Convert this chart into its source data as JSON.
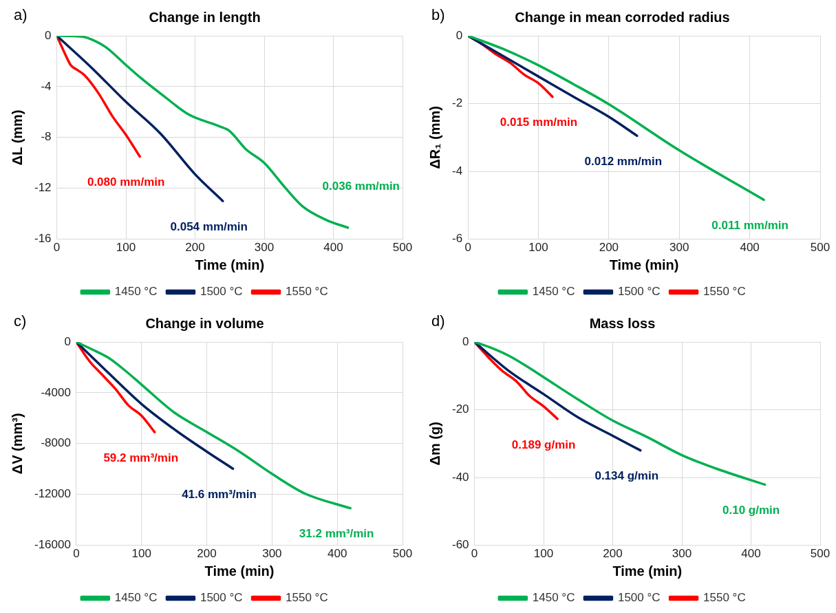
{
  "chart_data": [
    {
      "type": "line",
      "title": "Change in length",
      "xlabel": "Time (min)",
      "ylabel": "ΔL (mm)",
      "xlim": [
        0,
        500
      ],
      "xticks": [
        0,
        100,
        200,
        300,
        400,
        500
      ],
      "ylim": [
        -16,
        0
      ],
      "yticks": [
        -16,
        -12,
        -8,
        -4,
        0
      ],
      "grid": true,
      "legend": "bottom",
      "marker": "none",
      "line_style": "solid",
      "series": [
        {
          "name": "1450 °C",
          "color": "#00b050",
          "x": [
            0,
            20,
            40,
            51,
            71,
            100,
            121,
            156,
            191,
            234,
            250,
            273,
            300,
            331,
            355,
            390,
            421
          ],
          "values": [
            0,
            -0.02,
            -0.1,
            -0.3,
            -0.9,
            -2.3,
            -3.3,
            -4.8,
            -6.2,
            -7.1,
            -7.5,
            -8.9,
            -10,
            -12,
            -13.4,
            -14.5,
            -15.1
          ]
        },
        {
          "name": "1500 °C",
          "color": "#002060",
          "x": [
            0,
            50,
            100,
            150,
            200,
            240
          ],
          "values": [
            0,
            -2.5,
            -5.2,
            -7.7,
            -10.9,
            -13
          ]
        },
        {
          "name": "1550 °C",
          "color": "#ff0000",
          "x": [
            0,
            10,
            20,
            30,
            40,
            60,
            80,
            100,
            120
          ],
          "values": [
            0,
            -1.2,
            -2.3,
            -2.7,
            -3.1,
            -4.5,
            -6.3,
            -7.8,
            -9.5
          ]
        }
      ],
      "annotations": [
        "a)",
        "0.036 mm/min",
        "0.054 mm/min",
        "0.080 mm/min"
      ]
    },
    {
      "type": "line",
      "title": "Change in mean corroded radius",
      "xlabel": "Time (min)",
      "ylabel": "ΔR₁ (mm)",
      "xlim": [
        0,
        500
      ],
      "xticks": [
        0,
        100,
        200,
        300,
        400,
        500
      ],
      "ylim": [
        -6,
        0
      ],
      "yticks": [
        -6,
        -4,
        -2,
        0
      ],
      "grid": true,
      "legend": "bottom",
      "marker": "none",
      "line_style": "solid",
      "series": [
        {
          "name": "1450 °C",
          "color": "#00b050",
          "x": [
            0,
            50,
            100,
            150,
            200,
            300,
            420
          ],
          "values": [
            0,
            -0.39,
            -0.87,
            -1.43,
            -2.02,
            -3.38,
            -4.84
          ]
        },
        {
          "name": "1500 °C",
          "color": "#002060",
          "x": [
            0,
            50,
            100,
            150,
            200,
            240
          ],
          "values": [
            0,
            -0.6,
            -1.2,
            -1.8,
            -2.39,
            -2.95
          ]
        },
        {
          "name": "1550 °C",
          "color": "#ff0000",
          "x": [
            0,
            20,
            40,
            60,
            80,
            100,
            120
          ],
          "values": [
            0,
            -0.25,
            -0.55,
            -0.8,
            -1.15,
            -1.4,
            -1.8
          ]
        }
      ],
      "annotations": [
        "b)",
        "0.011 mm/min",
        "0.012 mm/min",
        "0.015 mm/min"
      ]
    },
    {
      "type": "line",
      "title": "Change in volume",
      "xlabel": "Time (min)",
      "ylabel": "ΔV (mm³)",
      "xlim": [
        0,
        500
      ],
      "xticks": [
        0,
        100,
        200,
        300,
        400,
        500
      ],
      "ylim": [
        -16000,
        0
      ],
      "yticks": [
        -16000,
        -12000,
        -8000,
        -4000,
        0
      ],
      "grid": true,
      "legend": "bottom",
      "marker": "none",
      "line_style": "solid",
      "series": [
        {
          "name": "1450 °C",
          "color": "#00b050",
          "x": [
            0,
            25,
            50,
            75,
            100,
            150,
            200,
            250,
            300,
            350,
            420
          ],
          "values": [
            0,
            -610,
            -1270,
            -2260,
            -3360,
            -5550,
            -7090,
            -8630,
            -10380,
            -11920,
            -13080
          ]
        },
        {
          "name": "1500 °C",
          "color": "#002060",
          "x": [
            0,
            50,
            100,
            150,
            200,
            240
          ],
          "values": [
            0,
            -2480,
            -4890,
            -6870,
            -8630,
            -9970
          ]
        },
        {
          "name": "1550 °C",
          "color": "#ff0000",
          "x": [
            0,
            20,
            40,
            60,
            80,
            100,
            120
          ],
          "values": [
            0,
            -1500,
            -2600,
            -3700,
            -5000,
            -5800,
            -7100
          ]
        }
      ],
      "annotations": [
        "c)",
        "31.2 mm³/min",
        "41.6 mm³/min",
        "59.2 mm³/min"
      ]
    },
    {
      "type": "line",
      "title": "Mass loss",
      "xlabel": "Time (min)",
      "ylabel": "Δm (g)",
      "xlim": [
        0,
        500
      ],
      "xticks": [
        0,
        100,
        200,
        300,
        400,
        500
      ],
      "ylim": [
        -60,
        0
      ],
      "yticks": [
        -60,
        -40,
        -20,
        0
      ],
      "grid": true,
      "legend": "bottom",
      "marker": "none",
      "line_style": "solid",
      "series": [
        {
          "name": "1450 °C",
          "color": "#00b050",
          "x": [
            0,
            25,
            50,
            75,
            100,
            150,
            200,
            250,
            300,
            350,
            420
          ],
          "values": [
            0,
            -1.8,
            -4.1,
            -7.1,
            -10.4,
            -17,
            -23.2,
            -28.1,
            -33.4,
            -37.4,
            -42.1
          ]
        },
        {
          "name": "1500 °C",
          "color": "#002060",
          "x": [
            0,
            50,
            100,
            150,
            200,
            240
          ],
          "values": [
            0,
            -8.6,
            -15.4,
            -22.3,
            -27.7,
            -32
          ]
        },
        {
          "name": "1550 °C",
          "color": "#ff0000",
          "x": [
            0,
            20,
            40,
            60,
            80,
            100,
            120
          ],
          "values": [
            0,
            -4.5,
            -8.5,
            -11.5,
            -16,
            -19,
            -22.7
          ]
        }
      ],
      "annotations": [
        "d)",
        "0.10 g/min",
        "0.134 g/min",
        "0.189 g/min"
      ]
    }
  ]
}
